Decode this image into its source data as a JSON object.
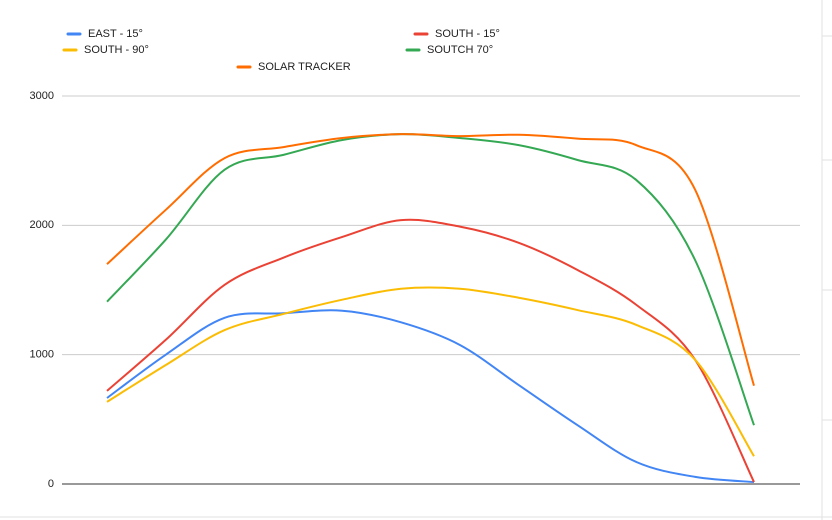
{
  "chart_data": {
    "type": "line",
    "categories": [
      null,
      null,
      null,
      null,
      null,
      null,
      null,
      null,
      null,
      null,
      null,
      null
    ],
    "series": [
      {
        "name": "EAST - 15°",
        "color": "#4285f4",
        "values": [
          665,
          1000,
          1285,
          1320,
          1340,
          1250,
          1075,
          765,
          455,
          170,
          55,
          15
        ]
      },
      {
        "name": "SOUTH - 15°",
        "color": "#ea4335",
        "values": [
          720,
          1115,
          1540,
          1750,
          1910,
          2040,
          1990,
          1865,
          1655,
          1385,
          960,
          15
        ]
      },
      {
        "name": "SOUTH - 90°",
        "color": "#fbbc04",
        "values": [
          635,
          920,
          1190,
          1315,
          1425,
          1510,
          1510,
          1440,
          1345,
          1230,
          960,
          215
        ]
      },
      {
        "name": "SOUTCH 70°",
        "color": "#34a853",
        "values": [
          1410,
          1890,
          2430,
          2545,
          2660,
          2705,
          2675,
          2620,
          2505,
          2350,
          1730,
          455
        ]
      },
      {
        "name": "SOLAR TRACKER",
        "color": "#ff6d01",
        "values": [
          1700,
          2120,
          2520,
          2605,
          2675,
          2705,
          2690,
          2700,
          2670,
          2620,
          2275,
          760
        ]
      }
    ],
    "ylim": [
      0,
      3000
    ],
    "yticks": [
      0,
      1000,
      2000,
      3000
    ],
    "grid": true,
    "smooth": true,
    "legend": "top"
  }
}
